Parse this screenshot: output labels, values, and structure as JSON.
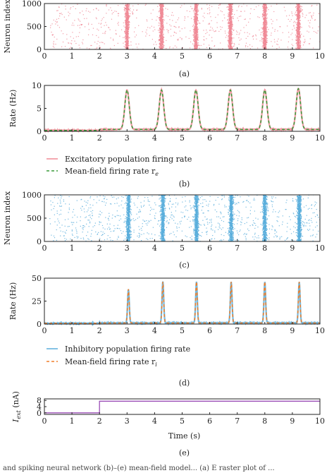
{
  "colors": {
    "excitatory": "#f08a96",
    "mean_field_e": "#3a9a3a",
    "inhibitory": "#5aaedc",
    "mean_field_i": "#f07f2a",
    "input": "#9a4db5",
    "axis": "#222222"
  },
  "footer_text": "and spiking neural network (b)–(e) mean-field model... (a) E raster plot of ...",
  "chart_data": [
    {
      "id": "a",
      "type": "scatter",
      "subtype": "raster",
      "caption": "(a)",
      "ylabel": "Neuron index",
      "xlabel": "",
      "xlim": [
        0,
        10
      ],
      "ylim": [
        0,
        1000
      ],
      "xticks": [
        "0",
        "1",
        "2",
        "3",
        "4",
        "5",
        "6",
        "7",
        "8",
        "9",
        "10"
      ],
      "yticks": [
        "0",
        "500",
        "1000"
      ],
      "burst_times": [
        3.0,
        4.25,
        5.5,
        6.75,
        8.0,
        9.22
      ],
      "background_spikes_per_s": 70,
      "background_onset": 0.2,
      "series_color_key": "excitatory"
    },
    {
      "id": "b",
      "type": "line",
      "caption": "(b)",
      "ylabel": "Rate (Hz)",
      "xlabel": "",
      "xlim": [
        0,
        10
      ],
      "ylim": [
        0,
        10
      ],
      "xticks": [
        "0",
        "1",
        "2",
        "3",
        "4",
        "5",
        "6",
        "7",
        "8",
        "9",
        "10"
      ],
      "yticks": [
        "0",
        "5",
        "10"
      ],
      "baseline": 0.2,
      "baseline_after_input": 0.4,
      "input_onset": 2.0,
      "peak_times": [
        3.0,
        4.25,
        5.5,
        6.75,
        8.0,
        9.22
      ],
      "peak_values": [
        9.0,
        9.0,
        9.0,
        9.0,
        9.0,
        9.3
      ],
      "series": [
        {
          "name": "Excitatory population firing rate",
          "style": "solid",
          "color_key": "excitatory"
        },
        {
          "name": "Mean-field firing rate r",
          "subscript": "e",
          "style": "dashed",
          "color_key": "mean_field_e"
        }
      ]
    },
    {
      "id": "c",
      "type": "scatter",
      "subtype": "raster",
      "caption": "(c)",
      "ylabel": "Neuron index",
      "xlabel": "",
      "xlim": [
        0,
        10
      ],
      "ylim": [
        0,
        1000
      ],
      "xticks": [
        "0",
        "1",
        "2",
        "3",
        "4",
        "5",
        "6",
        "7",
        "8",
        "9",
        "10"
      ],
      "yticks": [
        "0",
        "500",
        "1000"
      ],
      "burst_times": [
        3.05,
        4.3,
        5.52,
        6.78,
        8.0,
        9.25
      ],
      "background_spikes_per_s": 90,
      "background_onset": 0.2,
      "series_color_key": "inhibitory"
    },
    {
      "id": "d",
      "type": "line",
      "caption": "(d)",
      "ylabel": "Rate (Hz)",
      "xlabel": "",
      "xlim": [
        0,
        10
      ],
      "ylim": [
        0,
        50
      ],
      "xticks": [
        "0",
        "1",
        "2",
        "3",
        "4",
        "5",
        "6",
        "7",
        "8",
        "9",
        "10"
      ],
      "yticks": [
        "0",
        "25",
        "50"
      ],
      "baseline": 0.8,
      "baseline_after_input": 1.2,
      "input_onset": 2.0,
      "peak_times": [
        3.05,
        4.3,
        5.52,
        6.78,
        8.0,
        9.25
      ],
      "peak_values": [
        38,
        46,
        46,
        46,
        46,
        46
      ],
      "series": [
        {
          "name": "Inhibitory population firing rate",
          "style": "solid",
          "color_key": "inhibitory"
        },
        {
          "name": "Mean-field firing rate r",
          "subscript": "i",
          "style": "dashed",
          "color_key": "mean_field_i"
        }
      ]
    },
    {
      "id": "e",
      "type": "line",
      "caption": "(e)",
      "ylabel": "I",
      "ylabel_sub": "ext",
      "ylabel_unit": " (nA)",
      "xlabel": "Time (s)",
      "xlim": [
        0,
        10
      ],
      "ylim": [
        -1,
        9
      ],
      "xticks": [
        "0",
        "1",
        "2",
        "3",
        "4",
        "5",
        "6",
        "7",
        "8",
        "9",
        "10"
      ],
      "yticks": [
        "0",
        "4",
        "8"
      ],
      "x": [
        0,
        2,
        2,
        10
      ],
      "values": [
        0,
        0,
        7.5,
        7.5
      ],
      "series_color_key": "input"
    }
  ]
}
